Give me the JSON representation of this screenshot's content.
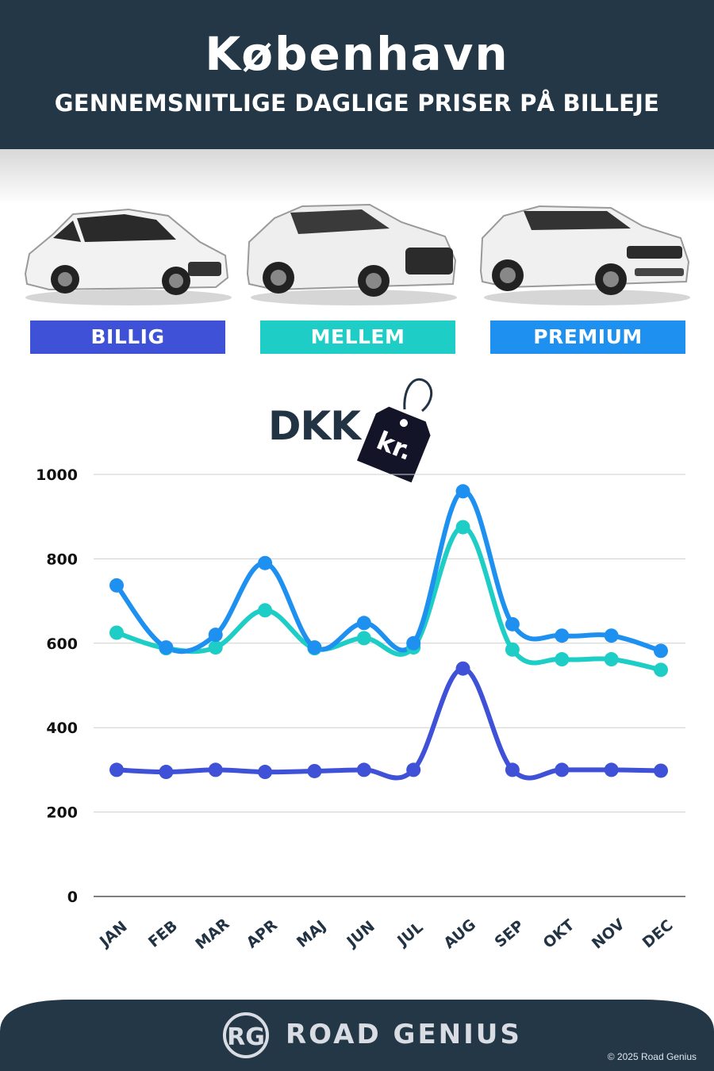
{
  "header": {
    "city": "København",
    "subtitle": "GENNEMSNITLIGE DAGLIGE PRISER PÅ BILLEJE"
  },
  "categories": [
    {
      "label": "BILLIG",
      "color": "#3f51d6",
      "icon": "hatchback-car-image"
    },
    {
      "label": "MELLEM",
      "color": "#1ecdc6",
      "icon": "suv-car-image"
    },
    {
      "label": "PREMIUM",
      "color": "#1e90f0",
      "icon": "luxury-suv-car-image"
    }
  ],
  "currency": {
    "code": "DKK",
    "tag_text": "kr.",
    "icon": "price-tag-icon"
  },
  "chart_data": {
    "type": "line",
    "categories": [
      "JAN",
      "FEB",
      "MAR",
      "APR",
      "MAJ",
      "JUN",
      "JUL",
      "AUG",
      "SEP",
      "OKT",
      "NOV",
      "DEC"
    ],
    "series": [
      {
        "name": "BILLIG",
        "color": "#3f51d6",
        "values": [
          300,
          295,
          300,
          295,
          297,
          300,
          300,
          540,
          300,
          300,
          300,
          298
        ]
      },
      {
        "name": "MELLEM",
        "color": "#1ecdc6",
        "values": [
          625,
          588,
          590,
          678,
          588,
          612,
          590,
          875,
          585,
          562,
          562,
          537
        ]
      },
      {
        "name": "PREMIUM",
        "color": "#1e90f0",
        "values": [
          737,
          590,
          620,
          790,
          590,
          648,
          600,
          960,
          645,
          618,
          618,
          582
        ]
      }
    ],
    "yticks": [
      0,
      200,
      400,
      600,
      800,
      1000
    ],
    "ylim": [
      0,
      1000
    ],
    "grid": true,
    "xlabel": "",
    "ylabel": "",
    "title": ""
  },
  "footer": {
    "logo_text": "RG",
    "brand": "ROAD GENIUS",
    "copyright": "© 2025 Road Genius",
    "bg_color": "#233747"
  }
}
